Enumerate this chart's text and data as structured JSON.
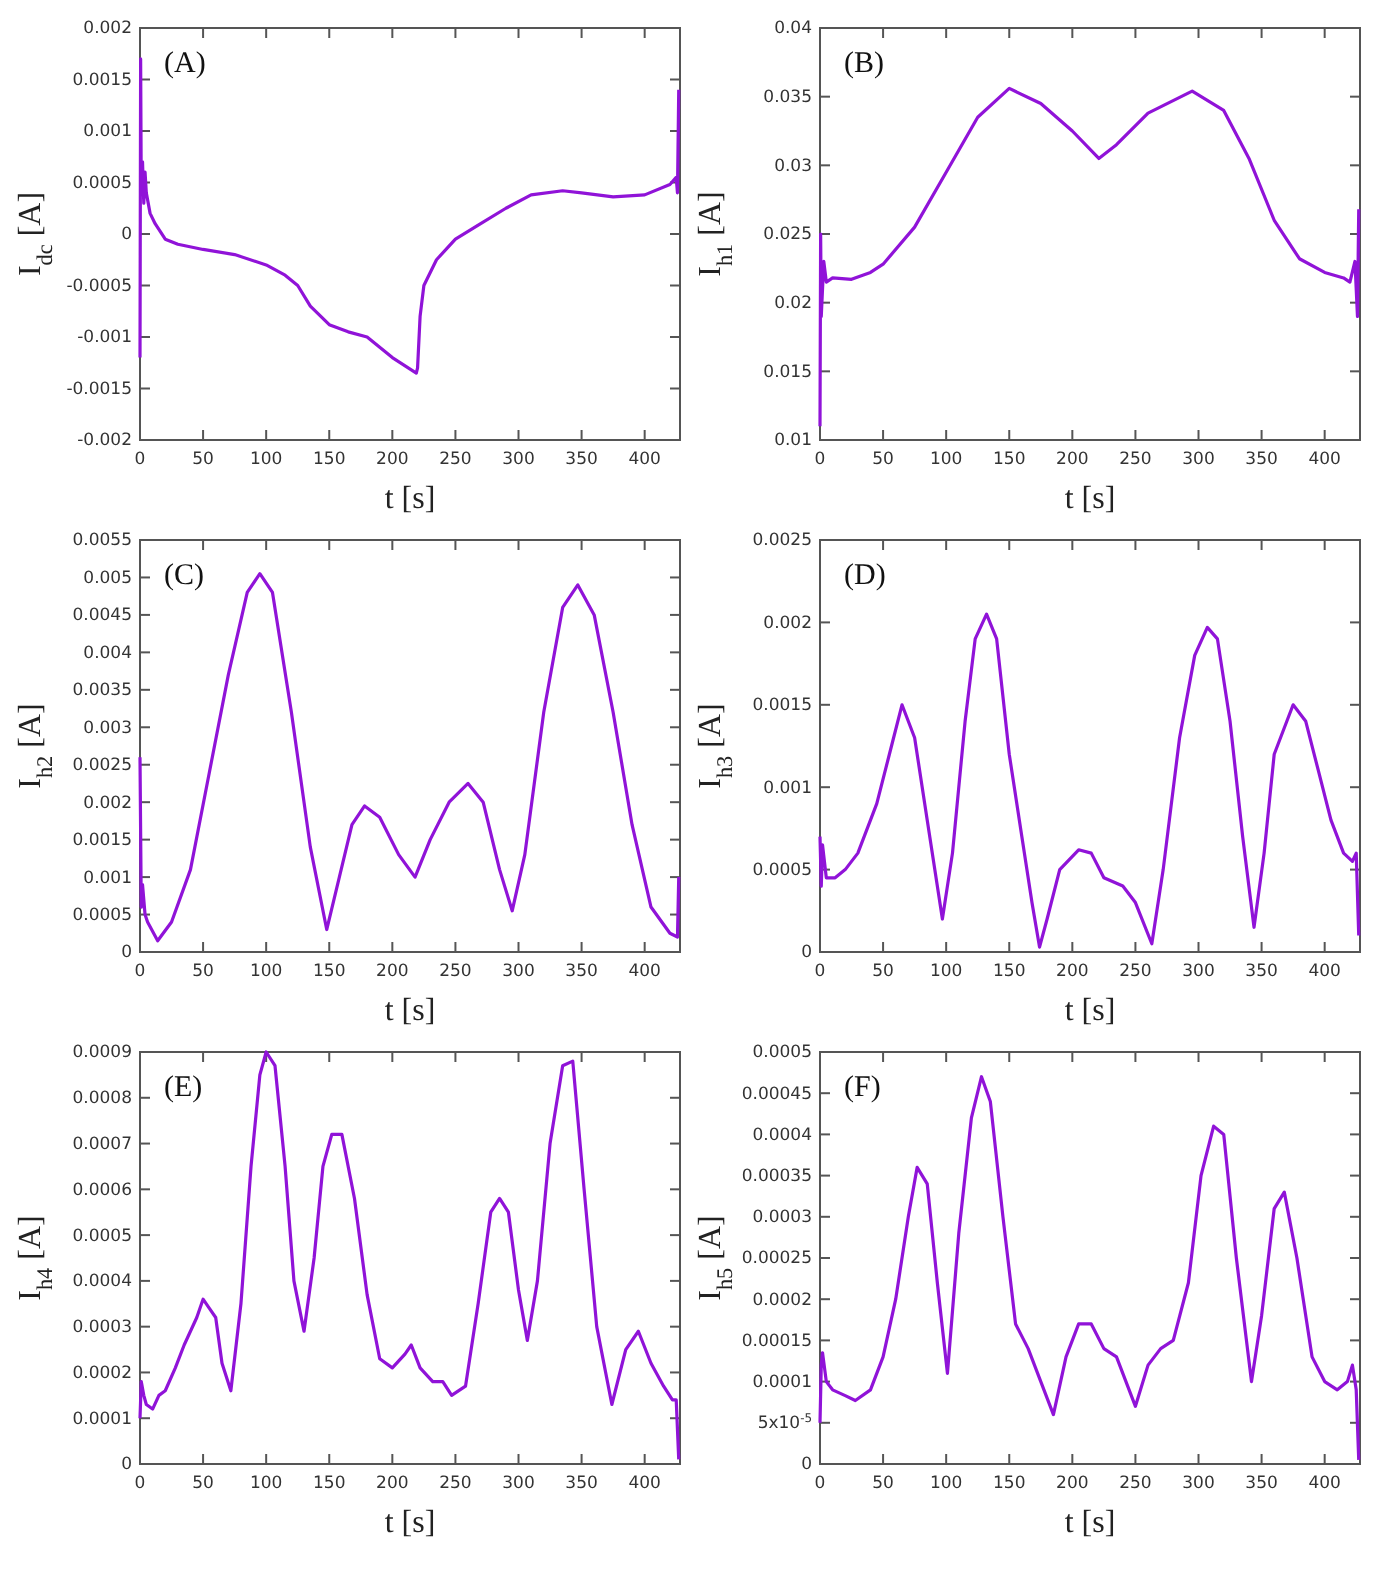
{
  "chart_data": [
    {
      "type": "line",
      "annotations": [
        "(A)"
      ],
      "xlabel": "t [s]",
      "ylabel": "I$_{dc}$  [A]",
      "xlim": [
        0,
        428
      ],
      "xticks": [
        0,
        50,
        100,
        150,
        200,
        250,
        300,
        350,
        400
      ],
      "ylim": [
        -0.002,
        0.002
      ],
      "yticks": [
        -0.002,
        -0.0015,
        -0.001,
        -0.0005,
        0,
        0.0005,
        0.001,
        0.0015,
        0.002
      ],
      "grid": false,
      "line_style": "solid",
      "marker": "none",
      "series": [
        {
          "color": "#9013d8",
          "x": [
            0,
            0.5,
            1,
            2,
            3,
            4,
            5,
            8,
            12,
            20,
            30,
            50,
            75,
            100,
            115,
            125,
            135,
            150,
            165,
            180,
            200,
            219,
            220,
            222,
            225,
            235,
            250,
            270,
            290,
            310,
            335,
            350,
            375,
            400,
            420,
            425,
            426,
            427
          ],
          "values": [
            -0.0012,
            0.0017,
            0.0004,
            0.0007,
            0.0003,
            0.0006,
            0.0004,
            0.0002,
            0.0001,
            -5e-05,
            -0.0001,
            -0.00015,
            -0.0002,
            -0.0003,
            -0.0004,
            -0.0005,
            -0.0007,
            -0.00088,
            -0.00095,
            -0.001,
            -0.0012,
            -0.00135,
            -0.0013,
            -0.0008,
            -0.0005,
            -0.00025,
            -5e-05,
            0.0001,
            0.00025,
            0.00038,
            0.00042,
            0.0004,
            0.00036,
            0.00038,
            0.00048,
            0.00055,
            0.0004,
            0.0014
          ]
        }
      ]
    },
    {
      "type": "line",
      "annotations": [
        "(B)"
      ],
      "xlabel": "t [s]",
      "ylabel": "I$_{h1}$  [A]",
      "xlim": [
        0,
        428
      ],
      "xticks": [
        0,
        50,
        100,
        150,
        200,
        250,
        300,
        350,
        400
      ],
      "ylim": [
        0.01,
        0.04
      ],
      "yticks": [
        0.01,
        0.015,
        0.02,
        0.025,
        0.03,
        0.035,
        0.04
      ],
      "grid": false,
      "line_style": "solid",
      "marker": "none",
      "series": [
        {
          "color": "#9013d8",
          "x": [
            0,
            0.5,
            1,
            3,
            5,
            10,
            25,
            40,
            50,
            75,
            100,
            125,
            150,
            175,
            200,
            221,
            235,
            260,
            295,
            320,
            340,
            360,
            380,
            400,
            415,
            420,
            424,
            426,
            427
          ],
          "values": [
            0.011,
            0.025,
            0.019,
            0.023,
            0.0215,
            0.0218,
            0.0217,
            0.0222,
            0.0228,
            0.0255,
            0.0295,
            0.0335,
            0.0356,
            0.0345,
            0.0325,
            0.0305,
            0.0315,
            0.0338,
            0.0354,
            0.034,
            0.0305,
            0.026,
            0.0232,
            0.0222,
            0.0218,
            0.0215,
            0.023,
            0.019,
            0.0268
          ]
        }
      ]
    },
    {
      "type": "line",
      "annotations": [
        "(C)"
      ],
      "xlabel": "t [s]",
      "ylabel": "I$_{h2}$  [A]",
      "xlim": [
        0,
        428
      ],
      "xticks": [
        0,
        50,
        100,
        150,
        200,
        250,
        300,
        350,
        400
      ],
      "ylim": [
        0,
        0.0055
      ],
      "yticks": [
        0,
        0.0005,
        0.001,
        0.0015,
        0.002,
        0.0025,
        0.003,
        0.0035,
        0.004,
        0.0045,
        0.005,
        0.0055
      ],
      "grid": false,
      "line_style": "solid",
      "marker": "none",
      "series": [
        {
          "color": "#9013d8",
          "x": [
            0,
            1,
            2,
            4,
            6,
            14,
            25,
            40,
            55,
            70,
            85,
            95,
            105,
            120,
            135,
            148,
            158,
            168,
            178,
            190,
            205,
            218,
            230,
            245,
            260,
            272,
            285,
            295,
            305,
            320,
            335,
            347,
            360,
            375,
            390,
            405,
            420,
            426,
            427
          ],
          "values": [
            0.0026,
            0.0006,
            0.0009,
            0.0005,
            0.0004,
            0.00015,
            0.0004,
            0.0011,
            0.0024,
            0.0037,
            0.0048,
            0.00505,
            0.0048,
            0.0032,
            0.0014,
            0.0003,
            0.001,
            0.0017,
            0.00195,
            0.0018,
            0.0013,
            0.001,
            0.0015,
            0.002,
            0.00225,
            0.002,
            0.0011,
            0.00055,
            0.0013,
            0.0032,
            0.0046,
            0.0049,
            0.0045,
            0.0032,
            0.0017,
            0.0006,
            0.00025,
            0.0002,
            0.001
          ]
        }
      ]
    },
    {
      "type": "line",
      "annotations": [
        "(D)"
      ],
      "xlabel": "t [s]",
      "ylabel": "I$_{h3}$  [A]",
      "xlim": [
        0,
        428
      ],
      "xticks": [
        0,
        50,
        100,
        150,
        200,
        250,
        300,
        350,
        400
      ],
      "ylim": [
        0,
        0.0025
      ],
      "yticks": [
        0,
        0.0005,
        0.001,
        0.0015,
        0.002,
        0.0025
      ],
      "grid": false,
      "line_style": "solid",
      "marker": "none",
      "series": [
        {
          "color": "#9013d8",
          "x": [
            0,
            1,
            2,
            5,
            12,
            20,
            30,
            45,
            55,
            65,
            75,
            85,
            97,
            105,
            115,
            123,
            132,
            140,
            150,
            160,
            168,
            174,
            180,
            190,
            205,
            215,
            225,
            240,
            250,
            263,
            272,
            285,
            297,
            307,
            315,
            325,
            335,
            344,
            352,
            360,
            375,
            385,
            395,
            405,
            415,
            422,
            425,
            427
          ],
          "values": [
            0.0007,
            0.0004,
            0.00065,
            0.00045,
            0.00045,
            0.0005,
            0.0006,
            0.0009,
            0.0012,
            0.0015,
            0.0013,
            0.0008,
            0.0002,
            0.0006,
            0.0014,
            0.0019,
            0.00205,
            0.0019,
            0.0012,
            0.0007,
            0.0003,
            3e-05,
            0.0002,
            0.0005,
            0.00062,
            0.0006,
            0.00045,
            0.0004,
            0.0003,
            5e-05,
            0.0005,
            0.0013,
            0.0018,
            0.00197,
            0.0019,
            0.0014,
            0.0007,
            0.00015,
            0.0006,
            0.0012,
            0.0015,
            0.0014,
            0.0011,
            0.0008,
            0.0006,
            0.00055,
            0.0006,
            0.0001
          ]
        }
      ]
    },
    {
      "type": "line",
      "annotations": [
        "(E)"
      ],
      "xlabel": "t [s]",
      "ylabel": "I$_{h4}$  [A]",
      "xlim": [
        0,
        428
      ],
      "xticks": [
        0,
        50,
        100,
        150,
        200,
        250,
        300,
        350,
        400
      ],
      "ylim": [
        0,
        0.0009
      ],
      "yticks": [
        0,
        0.0001,
        0.0002,
        0.0003,
        0.0004,
        0.0005,
        0.0006,
        0.0007,
        0.0008,
        0.0009
      ],
      "grid": false,
      "line_style": "solid",
      "marker": "none",
      "series": [
        {
          "color": "#9013d8",
          "x": [
            0,
            1,
            3,
            5,
            10,
            15,
            20,
            28,
            35,
            45,
            50,
            55,
            60,
            65,
            72,
            80,
            88,
            95,
            100,
            107,
            115,
            122,
            130,
            138,
            145,
            152,
            160,
            170,
            180,
            190,
            200,
            210,
            215,
            222,
            232,
            240,
            247,
            258,
            268,
            278,
            285,
            292,
            300,
            307,
            315,
            325,
            335,
            343,
            352,
            362,
            374,
            385,
            395,
            405,
            415,
            422,
            425,
            427
          ],
          "values": [
            0.0001,
            0.00018,
            0.00015,
            0.00013,
            0.00012,
            0.00015,
            0.00016,
            0.00021,
            0.00026,
            0.00032,
            0.00036,
            0.00034,
            0.00032,
            0.00022,
            0.00016,
            0.00035,
            0.00065,
            0.00085,
            0.0009,
            0.00087,
            0.00065,
            0.0004,
            0.00029,
            0.00045,
            0.00065,
            0.00072,
            0.00072,
            0.00058,
            0.00037,
            0.00023,
            0.00021,
            0.00024,
            0.00026,
            0.00021,
            0.00018,
            0.00018,
            0.00015,
            0.00017,
            0.00035,
            0.00055,
            0.00058,
            0.00055,
            0.00038,
            0.00027,
            0.0004,
            0.0007,
            0.00087,
            0.00088,
            0.0006,
            0.0003,
            0.00013,
            0.00025,
            0.00029,
            0.00022,
            0.00017,
            0.00014,
            0.00014,
            1e-05
          ]
        }
      ]
    },
    {
      "type": "line",
      "annotations": [
        "(F)"
      ],
      "xlabel": "t [s]",
      "ylabel": "I$_{h5}$  [A]",
      "xlim": [
        0,
        428
      ],
      "xticks": [
        0,
        50,
        100,
        150,
        200,
        250,
        300,
        350,
        400
      ],
      "ylim": [
        0,
        0.0005
      ],
      "yticks": [
        0,
        {
          "value": 5e-05,
          "label": "5x10$^{-5}$"
        },
        0.0001,
        0.00015,
        0.0002,
        0.00025,
        0.0003,
        0.00035,
        0.0004,
        0.00045,
        0.0005
      ],
      "grid": false,
      "line_style": "solid",
      "marker": "none",
      "series": [
        {
          "color": "#9013d8",
          "x": [
            0,
            1,
            2,
            5,
            10,
            20,
            28,
            40,
            50,
            60,
            70,
            77,
            85,
            93,
            101,
            110,
            120,
            128,
            135,
            145,
            155,
            165,
            175,
            185,
            195,
            205,
            215,
            225,
            235,
            250,
            260,
            270,
            280,
            292,
            302,
            312,
            320,
            330,
            342,
            350,
            360,
            368,
            378,
            390,
            400,
            410,
            418,
            422,
            425,
            427
          ],
          "values": [
            5e-05,
            0.00012,
            0.000135,
            0.0001,
            9e-05,
            8.3e-05,
            7.7e-05,
            9e-05,
            0.00013,
            0.0002,
            0.0003,
            0.00036,
            0.00034,
            0.00022,
            0.00011,
            0.00028,
            0.00042,
            0.00047,
            0.00044,
            0.0003,
            0.00017,
            0.00014,
            0.0001,
            6e-05,
            0.00013,
            0.00017,
            0.00017,
            0.00014,
            0.00013,
            7e-05,
            0.00012,
            0.00014,
            0.00015,
            0.00022,
            0.00035,
            0.00041,
            0.0004,
            0.00025,
            0.0001,
            0.00018,
            0.00031,
            0.00033,
            0.00025,
            0.00013,
            0.0001,
            9e-05,
            0.0001,
            0.00012,
            9e-05,
            5e-06
          ]
        }
      ]
    }
  ]
}
